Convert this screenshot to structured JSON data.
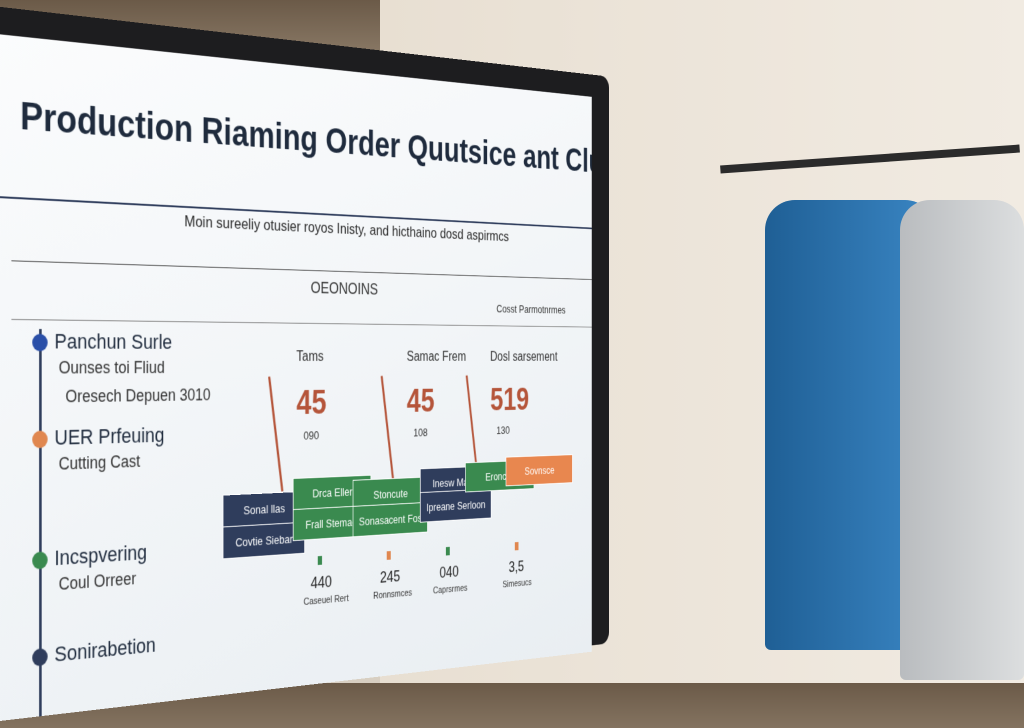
{
  "header": {
    "title": "Production Riaming Order Quutsice ant Cluting",
    "subtitle": "Moin sureeliy otusier royos Inisty, and hicthaino dosd aspirmcs",
    "section": "OEONOINS",
    "note": "Cosst Parmotnrmes"
  },
  "timeline": [
    {
      "title": "Panchun Surle",
      "lines": [
        "Ounses toi Fliud",
        "Oresech Depuen 3010"
      ],
      "color": "#2a4fa8"
    },
    {
      "title": "UER Prfeuing",
      "lines": [
        "Cutting Cast"
      ],
      "color": "#e0874f"
    },
    {
      "title": "Incspvering",
      "lines": [
        "Coul Orreer"
      ],
      "color": "#3a8a4f"
    },
    {
      "title": "Sonirabetion",
      "lines": [],
      "color": "#2f3d5c"
    }
  ],
  "metrics": [
    {
      "label": "Tams",
      "value": "45",
      "sub": "090"
    },
    {
      "label": "Samac Frem",
      "value": "45",
      "sub": "108"
    },
    {
      "label": "Dosl sarsement",
      "value": "519",
      "sub": "130"
    }
  ],
  "blocks": [
    {
      "text": "Sonal llas",
      "color": "#2f3d5c"
    },
    {
      "text": "Covtie Siebar",
      "color": "#2f3d5c"
    },
    {
      "text": "Drca Eller",
      "color": "#3a8a4f"
    },
    {
      "text": "Frall Stemact",
      "color": "#3a8a4f"
    },
    {
      "text": "Stoncute",
      "color": "#3a8a4f"
    },
    {
      "text": "Sonasacent Fos",
      "color": "#3a8a4f"
    },
    {
      "text": "Inesw Mante",
      "color": "#2f3d5c"
    },
    {
      "text": "Ipreane Serloon",
      "color": "#2f3d5c"
    },
    {
      "text": "Eroncsa",
      "color": "#3a8a4f"
    },
    {
      "text": "Sovnsce",
      "color": "#e8874f"
    }
  ],
  "footer_stats": [
    {
      "value": "440",
      "label": "Caseuel Rert"
    },
    {
      "value": "245",
      "label": "Ronnsmces"
    },
    {
      "value": "040",
      "label": "Caprsrmes"
    },
    {
      "value": "3,5",
      "label": "Simesucs"
    }
  ]
}
